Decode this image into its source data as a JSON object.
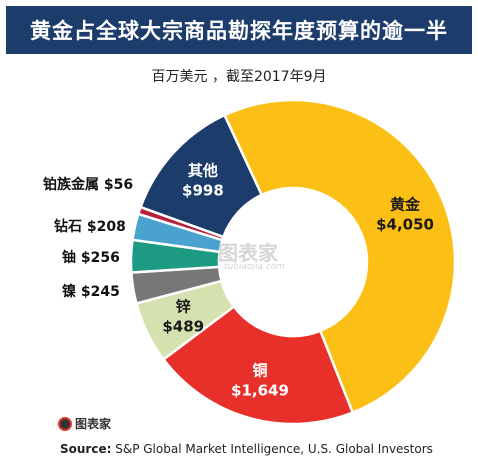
{
  "header": {
    "title": "黄金占全球大宗商品勘探年度预算的逾一半",
    "subtitle": "百万美元 ，截至2017年9月"
  },
  "chart_data": {
    "type": "pie",
    "variant": "donut",
    "unit": "百万美元",
    "slices": [
      {
        "name": "黄金",
        "value": 4050,
        "label": "$4,050",
        "color": "#fcbf16",
        "label_position": "inside",
        "label_color": "#1a1a1a"
      },
      {
        "name": "铜",
        "value": 1649,
        "label": "$1,649",
        "color": "#e8302a",
        "label_position": "inside",
        "label_color": "#ffffff"
      },
      {
        "name": "锌",
        "value": 489,
        "label": "$489",
        "color": "#d5e2b0",
        "label_position": "inside",
        "label_color": "#1a1a1a"
      },
      {
        "name": "镍",
        "value": 245,
        "label": "$245",
        "color": "#777777",
        "label_position": "outside",
        "label_color": "#111111"
      },
      {
        "name": "铀",
        "value": 256,
        "label": "$256",
        "color": "#1d9a82",
        "label_position": "outside",
        "label_color": "#111111"
      },
      {
        "name": "钻石",
        "value": 208,
        "label": "$208",
        "color": "#4aa3cf",
        "label_position": "outside",
        "label_color": "#111111"
      },
      {
        "name": "铂族金属",
        "value": 56,
        "label": "$56",
        "color": "#b71f3f",
        "label_position": "outside",
        "label_color": "#111111"
      },
      {
        "name": "其他",
        "value": 998,
        "label": "$998",
        "color": "#1c3d6b",
        "label_position": "inside",
        "label_color": "#ffffff"
      }
    ]
  },
  "watermark": {
    "text": "图表家",
    "sub": "tubiaojia.com"
  },
  "logo": {
    "text": "图表家"
  },
  "source": {
    "label": "Source:",
    "text": "S&P Global Market Intelligence, U.S. Global Investors"
  }
}
